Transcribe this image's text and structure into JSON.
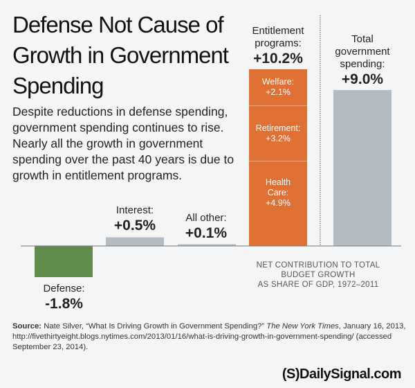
{
  "title": "Defense Not Cause of Growth in Government Spending",
  "subtitle": "Despite reductions in defense spending, government spending continues to rise. Nearly all the growth in government spending over the past 40 years is due to growth in entitlement programs.",
  "chart_data": {
    "type": "bar",
    "categories": [
      "Defense",
      "Interest",
      "All other",
      "Entitlement programs",
      "Total government spending"
    ],
    "values": [
      -1.8,
      0.5,
      0.1,
      10.2,
      9.0
    ],
    "value_labels": [
      "-1.8%",
      "+0.5%",
      "+0.1%",
      "+10.2%",
      "+9.0%"
    ],
    "category_labels": [
      "Defense:",
      "Interest:",
      "All other:",
      "Entitlement programs:",
      "Total government spending:"
    ],
    "stacked_components": [
      {
        "name": "Welfare:",
        "value": 2.1,
        "label": "+2.1%"
      },
      {
        "name": "Retirement:",
        "value": 3.2,
        "label": "+3.2%"
      },
      {
        "name": "Health Care:",
        "value": 4.9,
        "label": "+4.9%"
      }
    ],
    "axis_title_line1": "NET CONTRIBUTION TO TOTAL BUDGET GROWTH",
    "axis_title_line2": "AS SHARE OF GDP, 1972–2011",
    "colors": {
      "defense": "#5f8c4a",
      "other": "#b3bcc2",
      "entitlement": "#e07034"
    },
    "grid": false
  },
  "source": {
    "label": "Source:",
    "text1": " Nate Silver, “What Is Driving Growth in Government Spending?” ",
    "publication": "The New York Times",
    "text2": ", January 16, 2013, http://fivethirtyeight.blogs.nytimes.com/2013/01/16/what-is-driving-growth-in-government-spending/ (accessed September 23, 2014)."
  },
  "logo": "(S)DailySignal.com"
}
